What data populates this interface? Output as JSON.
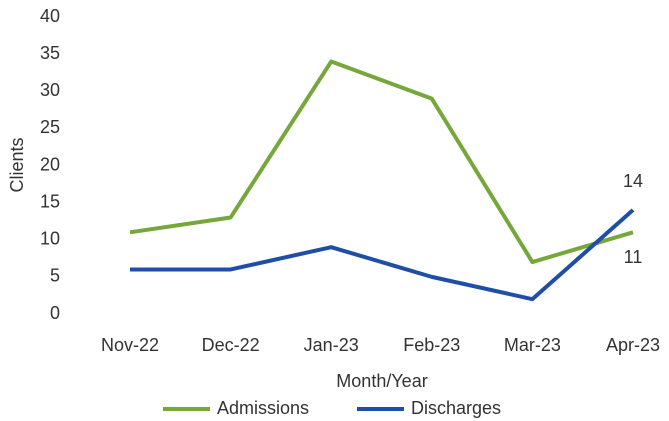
{
  "chart_data": {
    "type": "line",
    "categories": [
      "Nov-22",
      "Dec-22",
      "Jan-23",
      "Feb-23",
      "Mar-23",
      "Apr-23"
    ],
    "series": [
      {
        "name": "Admissions",
        "color": "#76a73a",
        "values": [
          11,
          13,
          34,
          29,
          7,
          11
        ]
      },
      {
        "name": "Discharges",
        "color": "#1f4ea6",
        "values": [
          6,
          6,
          9,
          5,
          2,
          14
        ]
      }
    ],
    "ylim": [
      0,
      40
    ],
    "yticks": [
      0,
      5,
      10,
      15,
      20,
      25,
      30,
      35,
      40
    ],
    "ylabel": "Clients",
    "xlabel": "Month/Year",
    "grid": false,
    "legend": "bottom"
  }
}
